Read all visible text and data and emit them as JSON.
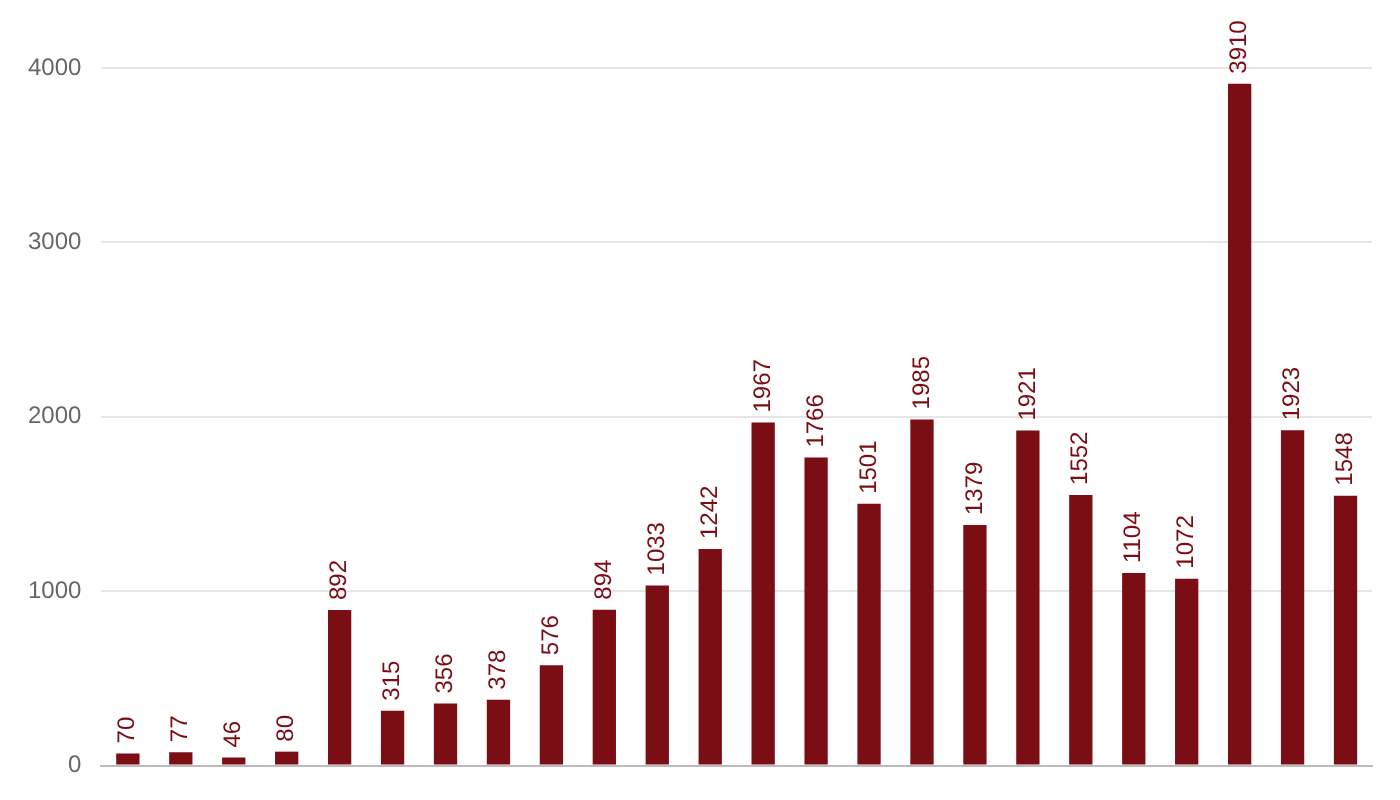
{
  "chart_data": {
    "type": "bar",
    "categories": [
      null,
      null,
      null,
      null,
      null,
      null,
      null,
      null,
      null,
      null,
      null,
      null,
      null,
      null,
      null,
      null,
      null,
      null,
      null,
      null,
      null,
      null,
      null,
      null
    ],
    "values": [
      70,
      77,
      46,
      80,
      892,
      315,
      356,
      378,
      576,
      894,
      1033,
      1242,
      1967,
      1766,
      1501,
      1985,
      1379,
      1921,
      1552,
      1104,
      1072,
      3910,
      1923,
      1548
    ],
    "color": "#7b0d15",
    "ylim": [
      0,
      4000
    ],
    "yticks": [
      0,
      1000,
      2000,
      3000,
      4000
    ],
    "grid": "y",
    "data_labels": true
  }
}
